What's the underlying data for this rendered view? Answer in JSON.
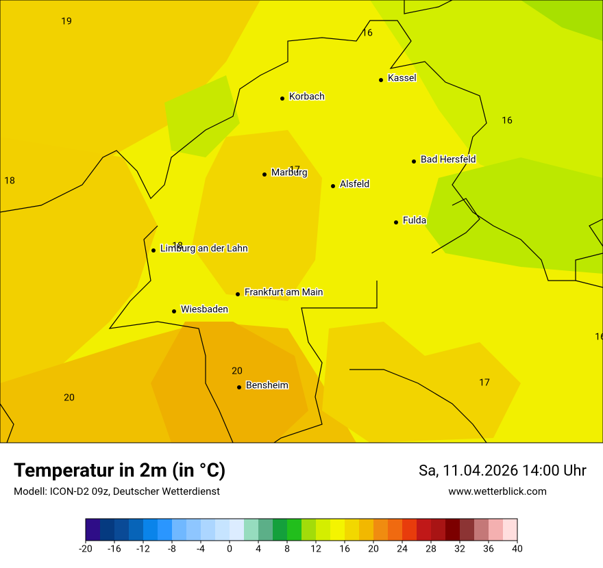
{
  "map": {
    "cities": [
      "Kassel",
      "Korbach",
      "Marburg",
      "Alsfeld",
      "Bad Hersfeld",
      "Fulda",
      "Limburg an der Lahn",
      "Frankfurt am Main",
      "Wiesbaden",
      "Bensheim"
    ],
    "temperature_labels": [
      19,
      16,
      16,
      18,
      17,
      18,
      20,
      20,
      17,
      16
    ]
  },
  "header": {
    "title": "Temperatur in 2m (in °C)",
    "subtitle": "Modell: ICON-D2 09z, Deutscher Wetterdienst",
    "date": "Sa, 11.04.2026 14:00 Uhr",
    "website": "www.wetterblick.com"
  },
  "colorbar": {
    "lim": [
      -20,
      40
    ],
    "ticks": [
      -20,
      -16,
      -12,
      -8,
      -4,
      0,
      4,
      8,
      12,
      16,
      20,
      24,
      28,
      32,
      36,
      40
    ],
    "colors": [
      "#2e0d87",
      "#053a80",
      "#0a4a96",
      "#0764b8",
      "#0a84ea",
      "#2a96ff",
      "#70b8ff",
      "#8ec6ff",
      "#acd6ff",
      "#c6e4ff",
      "#dcecff",
      "#96dcbe",
      "#5caf88",
      "#14a03c",
      "#22be1c",
      "#a2dc0a",
      "#d4ee00",
      "#f4f400",
      "#f2d800",
      "#f2b800",
      "#f08c10",
      "#f06a10",
      "#e83c0c",
      "#c01818",
      "#a81414",
      "#7c0000",
      "#8c3434",
      "#c47878",
      "#f4b0b0",
      "#ffdede"
    ]
  }
}
